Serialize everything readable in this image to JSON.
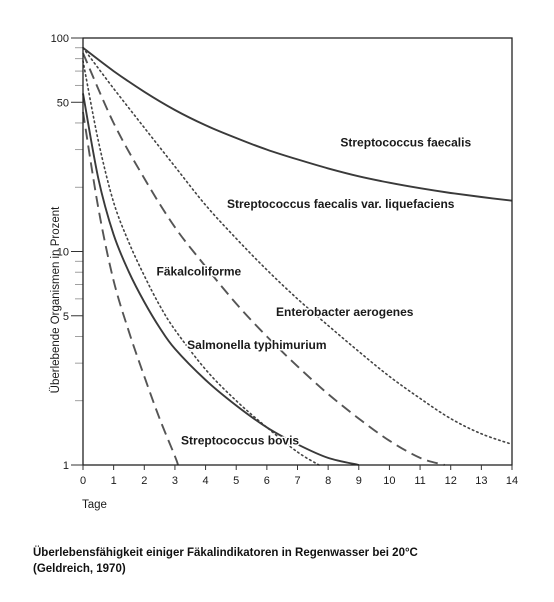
{
  "chart_data": {
    "type": "line",
    "ylabel": "Überlebende Organismen in Prozent",
    "xlabel": "Tage",
    "xlim": [
      0,
      14
    ],
    "ylim": [
      1,
      100
    ],
    "yscale": "log",
    "x_ticks": [
      0,
      1,
      2,
      3,
      4,
      5,
      6,
      7,
      8,
      9,
      10,
      11,
      12,
      13,
      14
    ],
    "y_ticks": [
      1,
      5,
      10,
      50,
      100
    ],
    "y_tick_labels": [
      "1",
      "5",
      "10",
      "50",
      "100"
    ],
    "grid": false,
    "series": [
      {
        "name": "Streptococcus faecalis",
        "line_style": "solid",
        "x": [
          0,
          1,
          2,
          3,
          4,
          5,
          6,
          7,
          8,
          9,
          10,
          11,
          12,
          13,
          14
        ],
        "y": [
          90,
          70,
          56,
          46,
          39,
          34,
          30,
          27,
          24.5,
          22.5,
          21,
          19.8,
          18.8,
          18,
          17.3
        ]
      },
      {
        "name": "Streptococcus faecalis var. liquefaciens",
        "line_style": "dotted",
        "x": [
          0,
          1,
          2,
          3,
          4,
          5,
          6,
          7,
          8,
          9,
          10,
          11,
          12,
          13,
          14
        ],
        "y": [
          90,
          58,
          38,
          25,
          16.5,
          11.5,
          8.2,
          6,
          4.5,
          3.4,
          2.6,
          2.05,
          1.65,
          1.4,
          1.25
        ]
      },
      {
        "name": "Enterobacter aerogenes",
        "line_style": "dashed",
        "x": [
          0,
          1,
          2,
          3,
          4,
          5,
          6,
          7,
          8,
          9,
          10,
          11,
          11.8
        ],
        "y": [
          85,
          40,
          22,
          13,
          8.5,
          5.7,
          4,
          2.9,
          2.15,
          1.65,
          1.3,
          1.08,
          1.0
        ]
      },
      {
        "name": "Fäkalcoliforme",
        "line_style": "dotted",
        "x": [
          0,
          0.5,
          1,
          1.5,
          2,
          2.5,
          3,
          4,
          5,
          6,
          7,
          7.7
        ],
        "y": [
          78,
          33,
          17,
          11,
          7.7,
          5.6,
          4.3,
          2.8,
          2,
          1.5,
          1.15,
          1.0
        ]
      },
      {
        "name": "Salmonella typhimurium",
        "line_style": "solid",
        "x": [
          0,
          0.5,
          1,
          1.5,
          2,
          2.5,
          3,
          4,
          5,
          6,
          7,
          8,
          9
        ],
        "y": [
          55,
          22,
          12,
          8,
          5.8,
          4.4,
          3.5,
          2.5,
          1.9,
          1.5,
          1.25,
          1.08,
          1.0
        ]
      },
      {
        "name": "Streptococcus bovis",
        "line_style": "dashed",
        "x": [
          0,
          0.5,
          1,
          1.5,
          2,
          2.5,
          3,
          3.1
        ],
        "y": [
          45,
          16,
          7.3,
          4.2,
          2.6,
          1.65,
          1.1,
          1.0
        ]
      }
    ],
    "annotations": [
      {
        "text": "Streptococcus faecalis",
        "x": 8.4,
        "y": 31
      },
      {
        "text": "Streptococcus faecalis var. liquefaciens",
        "x": 4.7,
        "y": 16
      },
      {
        "text": "Fäkalcoliforme",
        "x": 2.4,
        "y": 7.7
      },
      {
        "text": "Enterobacter aerogenes",
        "x": 6.3,
        "y": 5.0
      },
      {
        "text": "Salmonella typhimurium",
        "x": 3.4,
        "y": 3.5
      },
      {
        "text": "Streptococcus bovis",
        "x": 3.2,
        "y": 1.25
      }
    ]
  },
  "caption": {
    "line1": "Überlebensfähigkeit einiger Fäkalindikatoren in Regenwasser bei 20°C",
    "line2": "(Geldreich, 1970)"
  }
}
